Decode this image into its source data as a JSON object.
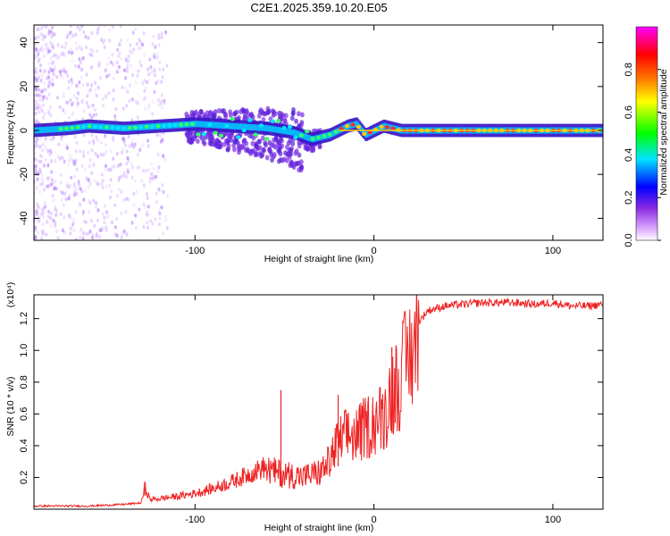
{
  "title": "C2E1.2025.359.10.20.E05",
  "chart_data": [
    {
      "type": "heatmap",
      "xlabel": "Height of straight line (km)",
      "ylabel": "Frequency (Hz)",
      "xlim": [
        -190,
        128
      ],
      "ylim": [
        -50,
        48
      ],
      "xticks": [
        -100,
        0,
        100
      ],
      "xtick_labels": [
        "-100",
        "0",
        "100"
      ],
      "yticks": [
        -40,
        -20,
        0,
        20,
        40
      ],
      "ytick_labels": [
        "-40",
        "-20",
        "0",
        "20",
        "40"
      ],
      "colorbar": {
        "label": "Normalized spectral amplitude",
        "range": [
          0,
          1
        ],
        "ticks": [
          0.0,
          0.2,
          0.4,
          0.6,
          0.8
        ],
        "tick_labels": [
          "0.0",
          "0.2",
          "0.4",
          "0.6",
          "0.8"
        ],
        "colormap": [
          "#ffffff",
          "#e0b0ff",
          "#8a2be2",
          "#0000ff",
          "#00e5ff",
          "#00ff00",
          "#ffff00",
          "#ff7f00",
          "#ff0000",
          "#ff00ff"
        ]
      },
      "ridge": [
        {
          "x": -190,
          "y": 0
        },
        {
          "x": -170,
          "y": 1
        },
        {
          "x": -160,
          "y": 2
        },
        {
          "x": -140,
          "y": 1
        },
        {
          "x": -120,
          "y": 2
        },
        {
          "x": -100,
          "y": 3
        },
        {
          "x": -80,
          "y": 2
        },
        {
          "x": -60,
          "y": 1
        },
        {
          "x": -45,
          "y": -1
        },
        {
          "x": -35,
          "y": -4
        },
        {
          "x": -25,
          "y": -2
        },
        {
          "x": -15,
          "y": 2
        },
        {
          "x": -10,
          "y": 3
        },
        {
          "x": -5,
          "y": -2
        },
        {
          "x": 0,
          "y": 0
        },
        {
          "x": 5,
          "y": 2
        },
        {
          "x": 15,
          "y": 0
        },
        {
          "x": 128,
          "y": 0
        }
      ],
      "grid": false
    },
    {
      "type": "line",
      "xlabel": "Height of straight line (km)",
      "ylabel": "SNR (10 * v/v)",
      "y_multiplier": "(x10⁴)",
      "xlim": [
        -190,
        128
      ],
      "ylim": [
        0,
        1.35
      ],
      "xticks": [
        -100,
        0,
        100
      ],
      "xtick_labels": [
        "-100",
        "0",
        "100"
      ],
      "yticks": [
        0.2,
        0.4,
        0.6,
        0.8,
        1.0,
        1.2
      ],
      "ytick_labels": [
        "0.2",
        "0.4",
        "0.6",
        "0.8",
        "1.0",
        "1.2"
      ],
      "color": "#ee2222",
      "series": [
        {
          "x": [
            -190,
            -160,
            -140,
            -130,
            -128,
            -125,
            -110,
            -100,
            -90,
            -80,
            -70,
            -60,
            -55,
            -50,
            -40,
            -30,
            -25,
            -20,
            -15,
            -10,
            -5,
            0,
            5,
            10,
            15,
            20,
            25,
            30,
            40,
            50,
            60,
            70,
            80,
            90,
            100,
            110,
            120,
            128
          ],
          "y": [
            0.02,
            0.02,
            0.03,
            0.04,
            0.14,
            0.06,
            0.08,
            0.1,
            0.13,
            0.17,
            0.22,
            0.27,
            0.25,
            0.24,
            0.22,
            0.25,
            0.32,
            0.45,
            0.5,
            0.5,
            0.55,
            0.6,
            0.62,
            0.8,
            0.9,
            1.05,
            1.18,
            1.25,
            1.28,
            1.29,
            1.3,
            1.3,
            1.3,
            1.29,
            1.3,
            1.28,
            1.28,
            1.29
          ]
        }
      ],
      "spikes": [
        {
          "x": -128,
          "y": 0.14
        },
        {
          "x": -52,
          "y": 0.75
        },
        {
          "x": -20,
          "y": 0.72
        },
        {
          "x": 10,
          "y": 1.02
        }
      ],
      "grid": false
    }
  ]
}
